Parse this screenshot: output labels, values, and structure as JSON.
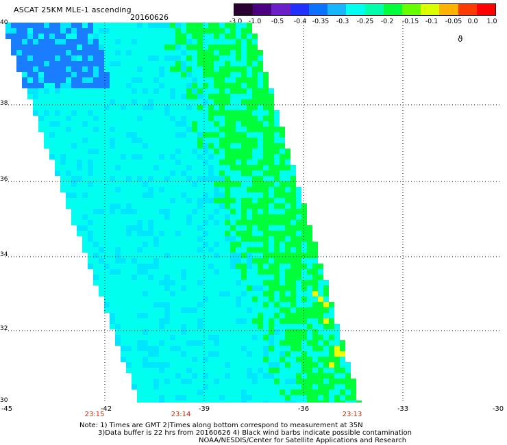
{
  "header": {
    "title": "ASCAT 25KM MLE-1 ascending",
    "date": "20160626"
  },
  "colorbar": {
    "labels": [
      "-3.0",
      "-1.0",
      "-0.5",
      "-0.4",
      "-0.35",
      "-0.3",
      "-0.25",
      "-0.2",
      "-0.15",
      "-0.1",
      "-0.05",
      "0.0",
      "1.0"
    ],
    "colors": [
      "#2a0030",
      "#4b0080",
      "#6a1fc8",
      "#2030ff",
      "#0a72ff",
      "#17b4ff",
      "#00ffee",
      "#00ffaa",
      "#00ff3a",
      "#66ff00",
      "#d9ff00",
      "#ffb300",
      "#ff3a00",
      "#ff0000"
    ]
  },
  "axes": {
    "lat_labels": [
      "40",
      "38",
      "36",
      "34",
      "32",
      "30"
    ],
    "lon_labels": [
      "-45",
      "-42",
      "-39",
      "-36",
      "-33",
      "-30"
    ],
    "time_labels": [
      "23:15",
      "23:14",
      "23:13"
    ]
  },
  "swath_colors": {
    "blue": "#1a7cff",
    "lightblue": "#00e6ff",
    "cyan": "#00ffee",
    "green": "#00ff3a",
    "yellow": "#f2ff00"
  },
  "legend_symbol": "ϑ",
  "notes": {
    "line1": "Note: 1) Times are GMT 2)Times along bottom correspond to measurement at 35N",
    "line2": "3)Data buffer is 22 hrs from 20160626 4) Black wind barbs indicate possible contamination",
    "line3": "NOAA/NESDIS/Center for Satellite Applications and Research"
  }
}
